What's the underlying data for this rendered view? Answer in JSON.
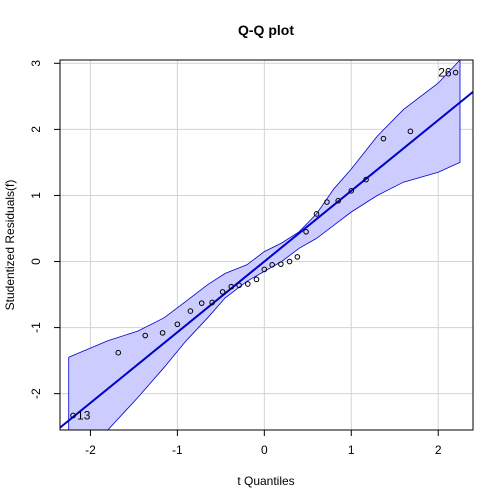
{
  "chart_data": {
    "type": "scatter",
    "title": "Q-Q plot",
    "xlabel": "t Quantiles",
    "ylabel": "Studentized Residuals(f)",
    "xlim": [
      -2.35,
      2.4
    ],
    "ylim": [
      -2.55,
      3.05
    ],
    "x_ticks": [
      -2,
      -1,
      0,
      1,
      2
    ],
    "y_ticks": [
      -2,
      -1,
      0,
      1,
      2,
      3
    ],
    "grid": true,
    "colors": {
      "points": "#000000",
      "line": "#0000cc",
      "band_fill": "#ccccff",
      "band_edge": "#0000cc",
      "grid": "#d3d3d3"
    },
    "reference_line": {
      "intercept": 0.0,
      "slope": 1.07
    },
    "confidence_band": {
      "x": [
        -2.25,
        -1.8,
        -1.45,
        -1.15,
        -0.9,
        -0.65,
        -0.45,
        -0.2,
        0.0,
        0.2,
        0.4,
        0.6,
        0.8,
        1.0,
        1.3,
        1.6,
        2.0,
        2.25
      ],
      "upper": [
        -1.45,
        -1.2,
        -1.05,
        -0.85,
        -0.6,
        -0.35,
        -0.18,
        -0.05,
        0.15,
        0.28,
        0.45,
        0.72,
        1.1,
        1.4,
        1.9,
        2.3,
        2.7,
        3.05
      ],
      "lower": [
        -2.55,
        -2.55,
        -2.05,
        -1.6,
        -1.2,
        -0.85,
        -0.55,
        -0.3,
        -0.15,
        0.0,
        0.2,
        0.35,
        0.55,
        0.75,
        1.0,
        1.2,
        1.35,
        1.5
      ]
    },
    "points": [
      {
        "x": -2.2,
        "y": -2.33,
        "label": "13"
      },
      {
        "x": -1.68,
        "y": -1.38
      },
      {
        "x": -1.37,
        "y": -1.12
      },
      {
        "x": -1.17,
        "y": -1.08
      },
      {
        "x": -1.0,
        "y": -0.95
      },
      {
        "x": -0.85,
        "y": -0.75
      },
      {
        "x": -0.72,
        "y": -0.63
      },
      {
        "x": -0.6,
        "y": -0.62
      },
      {
        "x": -0.48,
        "y": -0.46
      },
      {
        "x": -0.38,
        "y": -0.38
      },
      {
        "x": -0.29,
        "y": -0.36
      },
      {
        "x": -0.19,
        "y": -0.34
      },
      {
        "x": -0.09,
        "y": -0.27
      },
      {
        "x": 0.0,
        "y": -0.12
      },
      {
        "x": 0.09,
        "y": -0.05
      },
      {
        "x": 0.19,
        "y": -0.04
      },
      {
        "x": 0.29,
        "y": 0.0
      },
      {
        "x": 0.38,
        "y": 0.07
      },
      {
        "x": 0.48,
        "y": 0.45
      },
      {
        "x": 0.6,
        "y": 0.72
      },
      {
        "x": 0.72,
        "y": 0.9
      },
      {
        "x": 0.85,
        "y": 0.92
      },
      {
        "x": 1.0,
        "y": 1.07
      },
      {
        "x": 1.17,
        "y": 1.24
      },
      {
        "x": 1.37,
        "y": 1.86
      },
      {
        "x": 1.68,
        "y": 1.97
      },
      {
        "x": 2.2,
        "y": 2.86,
        "label": "26"
      }
    ]
  }
}
